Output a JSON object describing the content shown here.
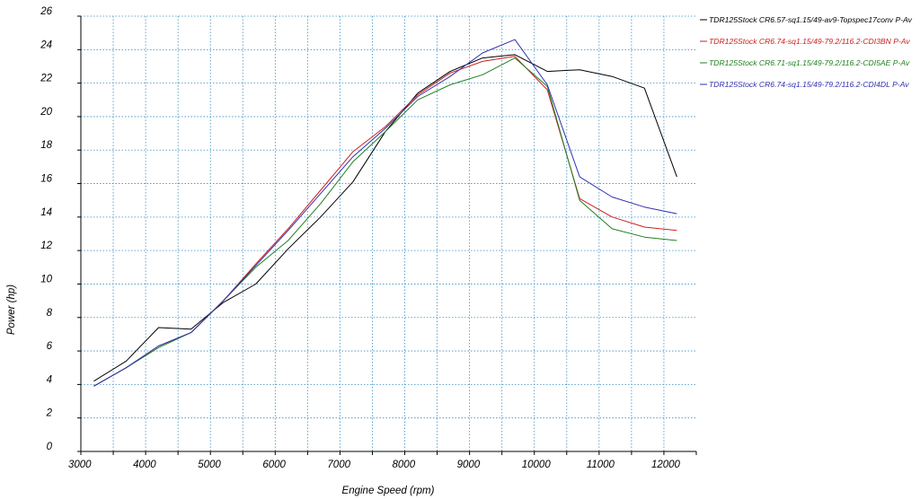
{
  "chart_data": {
    "type": "line",
    "title": "",
    "xlabel": "Engine Speed (rpm)",
    "ylabel": "Power (hp)",
    "xlim": [
      3000,
      12500
    ],
    "ylim": [
      0,
      26
    ],
    "x_ticks": [
      3000,
      4000,
      5000,
      6000,
      7000,
      8000,
      9000,
      10000,
      11000,
      12000
    ],
    "y_ticks": [
      0,
      2,
      4,
      6,
      8,
      10,
      12,
      14,
      16,
      18,
      20,
      22,
      24,
      26
    ],
    "grid": true,
    "legend_position": "right",
    "series": [
      {
        "name": "TDR125Stock CR6.57-sq1.15/49-av9-Topspec17conv  P-Av",
        "color": "#000000",
        "points": [
          [
            3200,
            4.2
          ],
          [
            3700,
            5.4
          ],
          [
            4200,
            7.4
          ],
          [
            4700,
            7.3
          ],
          [
            5200,
            8.9
          ],
          [
            5700,
            10.0
          ],
          [
            6200,
            12.1
          ],
          [
            6700,
            14.0
          ],
          [
            7200,
            16.1
          ],
          [
            7700,
            19.1
          ],
          [
            8200,
            21.4
          ],
          [
            8700,
            22.7
          ],
          [
            9200,
            23.5
          ],
          [
            9700,
            23.7
          ],
          [
            10200,
            22.7
          ],
          [
            10700,
            22.8
          ],
          [
            11200,
            22.4
          ],
          [
            11700,
            21.7
          ],
          [
            12200,
            16.4
          ]
        ]
      },
      {
        "name": "TDR125Stock CR6.74-sq1.15/49-79.2/116.2-CDI3BN  P-Av",
        "color": "#cc2020",
        "points": [
          [
            3200,
            3.9
          ],
          [
            3700,
            5.0
          ],
          [
            4200,
            6.3
          ],
          [
            4700,
            7.1
          ],
          [
            5200,
            9.0
          ],
          [
            5700,
            11.2
          ],
          [
            6200,
            13.3
          ],
          [
            6700,
            15.6
          ],
          [
            7200,
            17.9
          ],
          [
            7700,
            19.4
          ],
          [
            8200,
            21.3
          ],
          [
            8700,
            22.6
          ],
          [
            9200,
            23.3
          ],
          [
            9700,
            23.6
          ],
          [
            10200,
            21.6
          ],
          [
            10700,
            15.1
          ],
          [
            11200,
            14.0
          ],
          [
            11700,
            13.4
          ],
          [
            12200,
            13.2
          ]
        ]
      },
      {
        "name": "TDR125Stock CR6.71-sq1.15/49-79.2/116.2-CDI5AE  P-Av",
        "color": "#208020",
        "points": [
          [
            3200,
            3.9
          ],
          [
            3700,
            5.0
          ],
          [
            4200,
            6.2
          ],
          [
            4700,
            7.1
          ],
          [
            5200,
            9.0
          ],
          [
            5700,
            11.0
          ],
          [
            6200,
            12.6
          ],
          [
            6700,
            14.8
          ],
          [
            7200,
            17.3
          ],
          [
            7700,
            19.1
          ],
          [
            8200,
            21.0
          ],
          [
            8700,
            21.9
          ],
          [
            9200,
            22.5
          ],
          [
            9700,
            23.5
          ],
          [
            10200,
            21.8
          ],
          [
            10700,
            15.0
          ],
          [
            11200,
            13.3
          ],
          [
            11700,
            12.8
          ],
          [
            12200,
            12.6
          ]
        ]
      },
      {
        "name": "TDR125Stock CR6.74-sq1.15/49-79.2/116.2-CDI4DL  P-Av",
        "color": "#3030b0",
        "points": [
          [
            3200,
            3.9
          ],
          [
            3700,
            5.0
          ],
          [
            4200,
            6.3
          ],
          [
            4700,
            7.1
          ],
          [
            5200,
            9.0
          ],
          [
            5700,
            11.1
          ],
          [
            6200,
            13.2
          ],
          [
            6700,
            15.4
          ],
          [
            7200,
            17.6
          ],
          [
            7700,
            19.3
          ],
          [
            8200,
            21.2
          ],
          [
            8700,
            22.4
          ],
          [
            9200,
            23.8
          ],
          [
            9700,
            24.6
          ],
          [
            10200,
            21.9
          ],
          [
            10700,
            16.4
          ],
          [
            11200,
            15.2
          ],
          [
            11700,
            14.6
          ],
          [
            12200,
            14.2
          ]
        ]
      }
    ]
  }
}
